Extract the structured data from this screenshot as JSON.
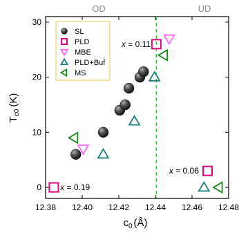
{
  "chart_data": {
    "type": "scatter",
    "xlabel": "c",
    "xlabel_sub": "0",
    "xlabel_unit": "(Å)",
    "ylabel": "T",
    "ylabel_sub": "c0",
    "ylabel_unit": "(K)",
    "xlim": [
      12.38,
      12.48
    ],
    "ylim": [
      -2,
      31
    ],
    "x_ticks": [
      12.38,
      12.4,
      12.42,
      12.44,
      12.46,
      12.48
    ],
    "x_tick_labels": [
      "12.38",
      "12.40",
      "12.42",
      "12.44",
      "12.46",
      "12.48"
    ],
    "y_ticks": [
      0,
      10,
      20,
      30
    ],
    "y_tick_labels": [
      "0",
      "10",
      "20",
      "30"
    ],
    "grid": false,
    "legend_position": "top-left",
    "region_labels": [
      "OD",
      "UD"
    ],
    "boundary_x": 12.4405,
    "series": [
      {
        "name": "SL",
        "marker": "sphere",
        "color": "#333333",
        "points": [
          [
            12.3965,
            6
          ],
          [
            12.4115,
            10
          ],
          [
            12.4205,
            14
          ],
          [
            12.4235,
            15
          ],
          [
            12.4255,
            18
          ],
          [
            12.4315,
            20
          ],
          [
            12.4335,
            21
          ]
        ]
      },
      {
        "name": "PLD",
        "marker": "square",
        "color": "#e6007e",
        "points": [
          [
            12.3845,
            0
          ],
          [
            12.4405,
            26
          ],
          [
            12.4685,
            3
          ]
        ]
      },
      {
        "name": "MBE",
        "marker": "triangle-down",
        "color": "#ff66ff",
        "points": [
          [
            12.4005,
            7
          ],
          [
            12.4475,
            27
          ]
        ]
      },
      {
        "name": "PLD+Buf",
        "marker": "triangle-up",
        "color": "#1a7f7f",
        "points": [
          [
            12.4115,
            6
          ],
          [
            12.4285,
            12
          ],
          [
            12.4395,
            20
          ],
          [
            12.4665,
            0
          ]
        ]
      },
      {
        "name": "MS",
        "marker": "triangle-left",
        "color": "#1a8a1a",
        "points": [
          [
            12.3955,
            9
          ],
          [
            12.4445,
            24
          ],
          [
            12.4745,
            0
          ]
        ]
      }
    ],
    "annotations": [
      {
        "prefix": "x",
        "text": " = 0.19",
        "x": 12.388,
        "y": 0
      },
      {
        "prefix": "x",
        "text": " = 0.11",
        "x": 12.4215,
        "y": 26
      },
      {
        "prefix": "x",
        "text": " = 0.06",
        "x": 12.4475,
        "y": 3
      }
    ]
  }
}
